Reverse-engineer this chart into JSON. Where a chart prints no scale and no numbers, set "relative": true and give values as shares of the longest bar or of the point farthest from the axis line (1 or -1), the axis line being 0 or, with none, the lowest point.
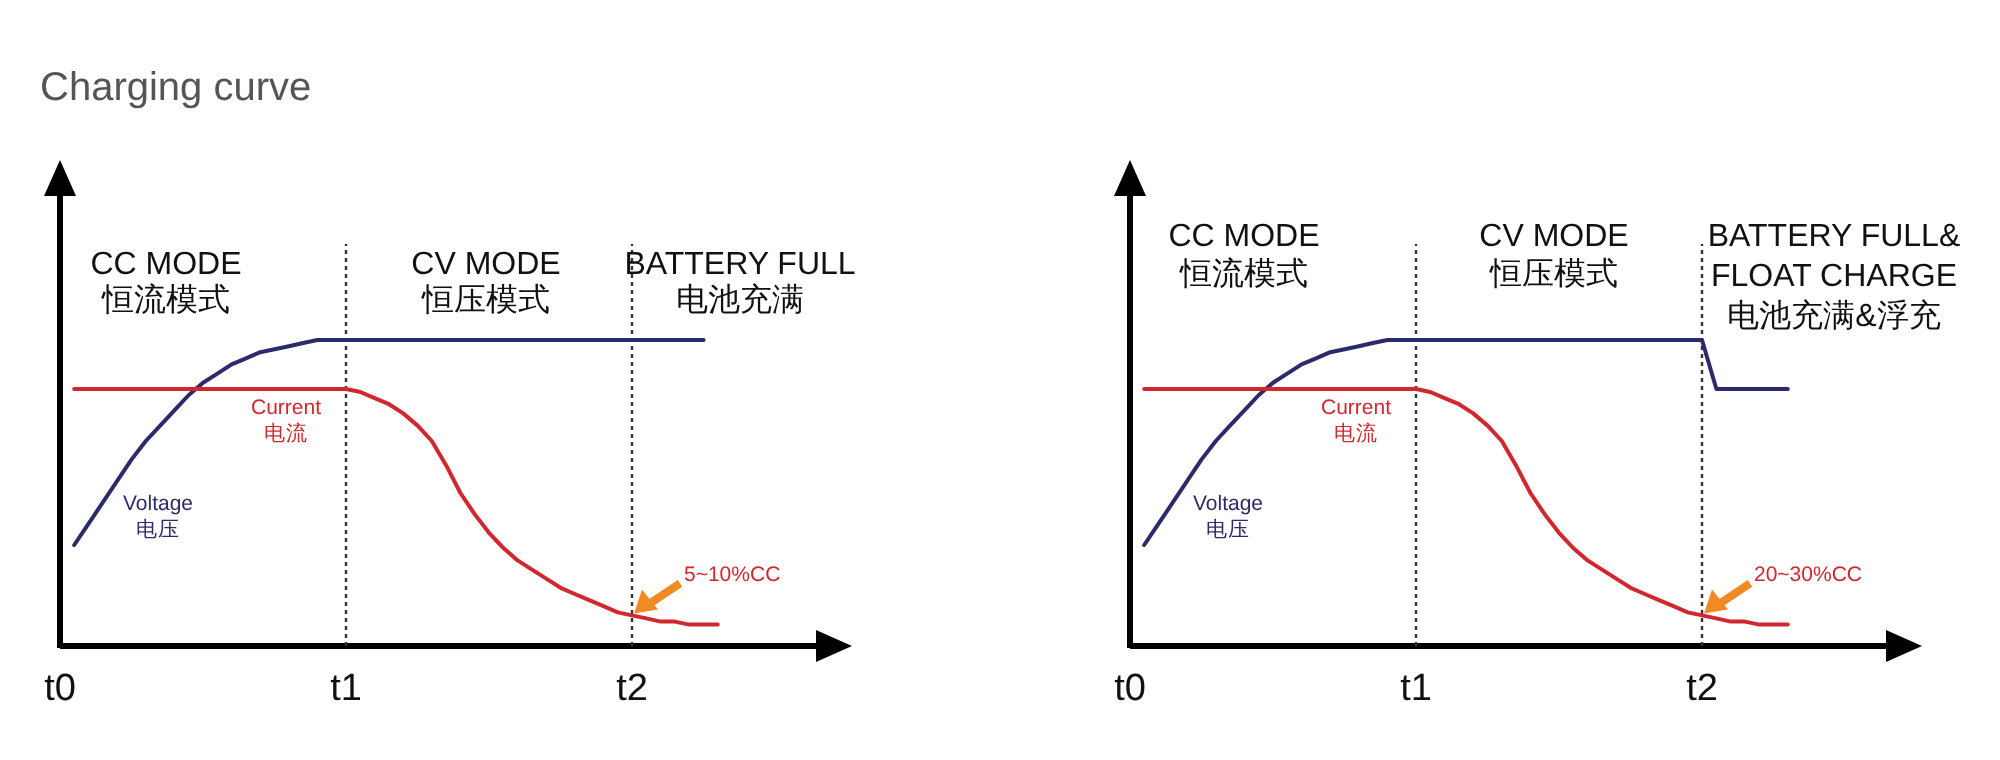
{
  "chart_data": [
    {
      "type": "line",
      "title": "Charging curve",
      "relative": true,
      "legend": false,
      "categories": [
        "t0",
        null,
        null,
        null,
        null,
        null,
        null,
        null,
        null,
        null,
        null,
        null,
        null,
        null,
        null,
        null,
        null,
        null,
        null,
        null,
        "t1",
        null,
        null,
        null,
        null,
        null,
        null,
        null,
        null,
        null,
        null,
        null,
        null,
        null,
        null,
        null,
        null,
        null,
        null,
        null,
        "t2",
        null,
        null,
        null,
        null,
        null,
        null
      ],
      "ref_lines": [
        {
          "axis": "x",
          "value": "t1",
          "line_style": "dotted",
          "color": "#333333"
        },
        {
          "axis": "x",
          "value": "t2",
          "line_style": "dotted",
          "color": "#333333"
        }
      ],
      "annotations": [
        "CC MODE",
        "恒流模式",
        "CV MODE",
        "恒压模式",
        "BATTERY FULL",
        "电池充满",
        {
          "text": "5~10%CC",
          "x": "t2",
          "y": 0.1
        }
      ],
      "series": [
        {
          "name": "Voltage 电压",
          "color": "#2b2a6b",
          "values": [
            null,
            0.33,
            0.4,
            0.47,
            0.54,
            0.61,
            0.67,
            0.72,
            0.77,
            0.82,
            0.86,
            0.89,
            0.92,
            0.94,
            0.96,
            0.97,
            0.98,
            0.99,
            1.0,
            1.0,
            1.0,
            1.0,
            1.0,
            1.0,
            1.0,
            1.0,
            1.0,
            1.0,
            1.0,
            1.0,
            1.0,
            1.0,
            1.0,
            1.0,
            1.0,
            1.0,
            1.0,
            1.0,
            1.0,
            1.0,
            1.0,
            1.0,
            1.0,
            1.0,
            1.0,
            1.0,
            null
          ]
        },
        {
          "name": "Current 电流",
          "color": "#d0282e",
          "values": [
            null,
            0.84,
            0.84,
            0.84,
            0.84,
            0.84,
            0.84,
            0.84,
            0.84,
            0.84,
            0.84,
            0.84,
            0.84,
            0.84,
            0.84,
            0.84,
            0.84,
            0.84,
            0.84,
            0.84,
            0.84,
            0.83,
            0.81,
            0.79,
            0.76,
            0.72,
            0.67,
            0.59,
            0.5,
            0.43,
            0.37,
            0.32,
            0.28,
            0.25,
            0.22,
            0.19,
            0.17,
            0.15,
            0.13,
            0.11,
            0.1,
            0.09,
            0.08,
            0.08,
            0.07,
            0.07,
            0.07
          ]
        }
      ]
    },
    {
      "type": "line",
      "relative": true,
      "legend": false,
      "categories": [
        "t0",
        null,
        null,
        null,
        null,
        null,
        null,
        null,
        null,
        null,
        null,
        null,
        null,
        null,
        null,
        null,
        null,
        null,
        null,
        null,
        "t1",
        null,
        null,
        null,
        null,
        null,
        null,
        null,
        null,
        null,
        null,
        null,
        null,
        null,
        null,
        null,
        null,
        null,
        null,
        null,
        "t2",
        null,
        null,
        null,
        null,
        null,
        null
      ],
      "ref_lines": [
        {
          "axis": "x",
          "value": "t1",
          "line_style": "dotted",
          "color": "#333333"
        },
        {
          "axis": "x",
          "value": "t2",
          "line_style": "dotted",
          "color": "#333333"
        }
      ],
      "annotations": [
        "CC MODE",
        "恒流模式",
        "CV MODE",
        "恒压模式",
        "BATTERY FULL&",
        "FLOAT CHARGE",
        "电池充满&浮充",
        {
          "text": "20~30%CC",
          "x": "t2",
          "y": 0.1
        }
      ],
      "series": [
        {
          "name": "Voltage 电压",
          "color": "#2b2a6b",
          "values": [
            null,
            0.33,
            0.4,
            0.47,
            0.54,
            0.61,
            0.67,
            0.72,
            0.77,
            0.82,
            0.86,
            0.89,
            0.92,
            0.94,
            0.96,
            0.97,
            0.98,
            0.99,
            1.0,
            1.0,
            1.0,
            1.0,
            1.0,
            1.0,
            1.0,
            1.0,
            1.0,
            1.0,
            1.0,
            1.0,
            1.0,
            1.0,
            1.0,
            1.0,
            1.0,
            1.0,
            1.0,
            1.0,
            1.0,
            1.0,
            1.0,
            0.84,
            0.84,
            0.84,
            0.84,
            0.84,
            0.84
          ]
        },
        {
          "name": "Current 电流",
          "color": "#d0282e",
          "values": [
            null,
            0.84,
            0.84,
            0.84,
            0.84,
            0.84,
            0.84,
            0.84,
            0.84,
            0.84,
            0.84,
            0.84,
            0.84,
            0.84,
            0.84,
            0.84,
            0.84,
            0.84,
            0.84,
            0.84,
            0.84,
            0.83,
            0.81,
            0.79,
            0.76,
            0.72,
            0.67,
            0.59,
            0.5,
            0.43,
            0.37,
            0.32,
            0.28,
            0.25,
            0.22,
            0.19,
            0.17,
            0.15,
            0.13,
            0.11,
            0.1,
            0.09,
            0.08,
            0.08,
            0.07,
            0.07,
            0.07
          ]
        }
      ]
    }
  ]
}
